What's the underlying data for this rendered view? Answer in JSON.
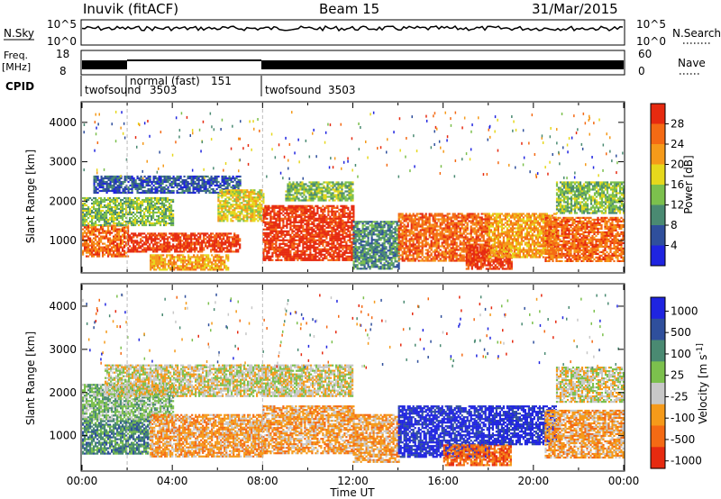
{
  "header": {
    "station": "Inuvik (fitACF)",
    "beam": "Beam 15",
    "date": "31/Mar/2015"
  },
  "top_panels": {
    "nsky_label": "N.Sky",
    "nsky_ticks": [
      "10^5",
      "10^0"
    ],
    "nsearch_label": "N.Search",
    "nsearch_ticks": [
      "10^5",
      "10^0"
    ],
    "freq_label": "Freq.",
    "freq_unit": "[MHz]",
    "freq_ticks": [
      "18",
      "8"
    ],
    "nave_label": "Nave",
    "nave_ticks": [
      "60",
      "0"
    ],
    "cpid_label": "CPID",
    "cpid_segments": [
      {
        "name": "twofsound",
        "id": "3503",
        "start": 0,
        "end": 2
      },
      {
        "name": "normal (fast)",
        "id": "151",
        "start": 2,
        "end": 8
      },
      {
        "name": "twofsound",
        "id": "3503",
        "start": 8,
        "end": 24
      }
    ]
  },
  "chart_data": [
    {
      "type": "heatmap",
      "title": "",
      "xlabel": "",
      "ylabel": "Slant Range [km]",
      "xlim": [
        0,
        24
      ],
      "ylim": [
        200,
        4500
      ],
      "yticks": [
        "1000",
        "2000",
        "3000",
        "4000"
      ],
      "colorbar_label": "Power [dB]",
      "colorbar_ticks": [
        "4",
        "8",
        "12",
        "16",
        "20",
        "24",
        "28"
      ],
      "colorbar_colors": [
        "#1f24e0",
        "#2f4f9c",
        "#4a8a72",
        "#7cc04d",
        "#e6d81c",
        "#f59a1a",
        "#f46a14",
        "#e62a10"
      ],
      "bands": [
        {
          "t0": 0,
          "t1": 2,
          "r0": 600,
          "r1": 1400,
          "level": 6
        },
        {
          "t0": 0,
          "t1": 4,
          "r0": 1400,
          "r1": 2100,
          "level": 3
        },
        {
          "t0": 0.5,
          "t1": 7,
          "r0": 2200,
          "r1": 2650,
          "level": 1
        },
        {
          "t0": 2,
          "t1": 7,
          "r0": 700,
          "r1": 1200,
          "level": 7
        },
        {
          "t0": 3,
          "t1": 6.5,
          "r0": 250,
          "r1": 650,
          "level": 5
        },
        {
          "t0": 6,
          "t1": 8,
          "r0": 1500,
          "r1": 2300,
          "level": 4
        },
        {
          "t0": 8,
          "t1": 12,
          "r0": 500,
          "r1": 1900,
          "level": 7
        },
        {
          "t0": 9,
          "t1": 12,
          "r0": 2000,
          "r1": 2500,
          "level": 3
        },
        {
          "t0": 12,
          "t1": 14,
          "r0": 300,
          "r1": 1500,
          "level": 2
        },
        {
          "t0": 14,
          "t1": 18,
          "r0": 500,
          "r1": 1700,
          "level": 6
        },
        {
          "t0": 17,
          "t1": 19,
          "r0": 300,
          "r1": 900,
          "level": 7
        },
        {
          "t0": 18,
          "t1": 21,
          "r0": 600,
          "r1": 1700,
          "level": 5
        },
        {
          "t0": 20.5,
          "t1": 24,
          "r0": 500,
          "r1": 1600,
          "level": 6
        },
        {
          "t0": 21,
          "t1": 24,
          "r0": 1700,
          "r1": 2500,
          "level": 3
        }
      ]
    },
    {
      "type": "heatmap",
      "title": "",
      "xlabel": "Time UT",
      "ylabel": "Slant Range [km]",
      "xlim": [
        0,
        24
      ],
      "ylim": [
        200,
        4500
      ],
      "xticks": [
        "00:00",
        "04:00",
        "08:00",
        "12:00",
        "16:00",
        "20:00",
        "00:00"
      ],
      "yticks": [
        "1000",
        "2000",
        "3000",
        "4000"
      ],
      "colorbar_label": "Velocity [m s^-1]",
      "colorbar_ticks": [
        "1000",
        "500",
        "100",
        "25",
        "-25",
        "-100",
        "-500",
        "-1000"
      ],
      "colorbar_colors": [
        "#1f24e0",
        "#2f4f9c",
        "#4a8a72",
        "#7cc04d",
        "#c8c8c8",
        "#f59a1a",
        "#f46a14",
        "#e62a10"
      ],
      "bands": [
        {
          "t0": 0,
          "t1": 3,
          "r0": 600,
          "r1": 1400,
          "level": 2
        },
        {
          "t0": 0,
          "t1": 4,
          "r0": 1400,
          "r1": 2200,
          "level": 3
        },
        {
          "t0": 1,
          "t1": 12,
          "r0": 1900,
          "r1": 2650,
          "level": 4
        },
        {
          "t0": 3,
          "t1": 8,
          "r0": 500,
          "r1": 1500,
          "level": 5
        },
        {
          "t0": 8,
          "t1": 12,
          "r0": 600,
          "r1": 1700,
          "level": 5
        },
        {
          "t0": 12,
          "t1": 14,
          "r0": 400,
          "r1": 1500,
          "level": 5
        },
        {
          "t0": 14,
          "t1": 18,
          "r0": 500,
          "r1": 1700,
          "level": 0
        },
        {
          "t0": 16,
          "t1": 19,
          "r0": 300,
          "r1": 800,
          "level": 6
        },
        {
          "t0": 18,
          "t1": 21,
          "r0": 800,
          "r1": 1700,
          "level": 0
        },
        {
          "t0": 20.5,
          "t1": 24,
          "r0": 500,
          "r1": 1600,
          "level": 5
        },
        {
          "t0": 21,
          "t1": 24,
          "r0": 1800,
          "r1": 2600,
          "level": 4
        }
      ]
    }
  ]
}
